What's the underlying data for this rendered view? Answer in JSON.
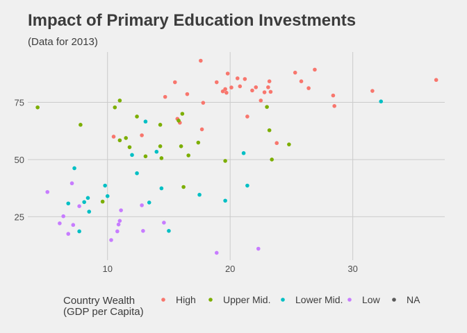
{
  "chart_data": {
    "type": "scatter",
    "title": "Impact of Primary Education Investments",
    "subtitle": "(Data for 2013)",
    "xlabel": "",
    "ylabel": "",
    "xlim": [
      3.5,
      37.5
    ],
    "ylim": [
      6,
      97
    ],
    "x_ticks": [
      10,
      20,
      30
    ],
    "y_ticks": [
      25,
      50,
      75
    ],
    "grid": true,
    "legend_position": "bottom",
    "legend_title": [
      "Country Wealth",
      "(GDP per Capita)"
    ],
    "series": [
      {
        "name": "High",
        "color": "#f8766d",
        "points": [
          [
            17.6,
            93.2
          ],
          [
            15.5,
            83.8
          ],
          [
            14.7,
            77.4
          ],
          [
            16.5,
            78.6
          ],
          [
            17.8,
            74.8
          ],
          [
            15.7,
            67.8
          ],
          [
            15.9,
            66.1
          ],
          [
            17.7,
            63.2
          ],
          [
            10.5,
            60
          ],
          [
            12.8,
            60.6
          ],
          [
            18.9,
            83.8
          ],
          [
            19.4,
            79.8
          ],
          [
            19.6,
            80.8
          ],
          [
            19.7,
            79.2
          ],
          [
            19.8,
            87.6
          ],
          [
            20.1,
            81.5
          ],
          [
            20.6,
            85.5
          ],
          [
            20.8,
            82
          ],
          [
            21.2,
            85.2
          ],
          [
            21.8,
            80.2
          ],
          [
            22.1,
            81.6
          ],
          [
            22.5,
            75.8
          ],
          [
            22.8,
            79.4
          ],
          [
            23.1,
            81.6
          ],
          [
            23.2,
            84.2
          ],
          [
            23.3,
            79.6
          ],
          [
            21.4,
            68.8
          ],
          [
            23.8,
            57.2
          ],
          [
            25.3,
            88
          ],
          [
            25.8,
            84.2
          ],
          [
            26.4,
            81.2
          ],
          [
            26.9,
            89.3
          ],
          [
            28.4,
            78
          ],
          [
            28.5,
            73.4
          ],
          [
            31.6,
            80
          ],
          [
            36.8,
            84.8
          ]
        ]
      },
      {
        "name": "Upper Mid.",
        "color": "#7cae00",
        "points": [
          [
            4.3,
            72.8
          ],
          [
            7.8,
            65.2
          ],
          [
            10.6,
            72.8
          ],
          [
            11.0,
            75.8
          ],
          [
            11.0,
            58.4
          ],
          [
            11.5,
            59.4
          ],
          [
            11.8,
            55.4
          ],
          [
            12.4,
            68.8
          ],
          [
            13.1,
            51.4
          ],
          [
            14.3,
            65.2
          ],
          [
            14.3,
            55.8
          ],
          [
            14.4,
            50.6
          ],
          [
            15.8,
            67
          ],
          [
            16.1,
            70
          ],
          [
            16.0,
            55.8
          ],
          [
            16.2,
            38
          ],
          [
            16.6,
            51.8
          ],
          [
            17.4,
            57.4
          ],
          [
            19.6,
            49.4
          ],
          [
            23.0,
            73
          ],
          [
            23.2,
            62.8
          ],
          [
            23.4,
            50
          ],
          [
            24.8,
            56.6
          ],
          [
            9.6,
            31.6
          ]
        ]
      },
      {
        "name": "Lower Mid.",
        "color": "#00bfc4",
        "points": [
          [
            7.3,
            46.2
          ],
          [
            6.8,
            30.8
          ],
          [
            8.1,
            31.4
          ],
          [
            8.4,
            33.2
          ],
          [
            8.5,
            27.2
          ],
          [
            9.8,
            38.6
          ],
          [
            10.0,
            34
          ],
          [
            7.7,
            18.6
          ],
          [
            12.0,
            52
          ],
          [
            12.4,
            44
          ],
          [
            13.1,
            66.6
          ],
          [
            13.4,
            31.2
          ],
          [
            14.0,
            53.4
          ],
          [
            14.4,
            37.4
          ],
          [
            15.0,
            18.8
          ],
          [
            17.5,
            34.6
          ],
          [
            19.6,
            32
          ],
          [
            21.1,
            52.8
          ],
          [
            21.4,
            38.6
          ],
          [
            32.3,
            75.4
          ]
        ]
      },
      {
        "name": "Low",
        "color": "#c77cff",
        "points": [
          [
            5.1,
            35.8
          ],
          [
            6.1,
            22.1
          ],
          [
            6.4,
            25.2
          ],
          [
            6.8,
            17.5
          ],
          [
            7.1,
            39.6
          ],
          [
            7.2,
            21.4
          ],
          [
            7.7,
            29.6
          ],
          [
            10.3,
            14.8
          ],
          [
            10.8,
            18.6
          ],
          [
            10.9,
            21.6
          ],
          [
            11.0,
            23.2
          ],
          [
            11.1,
            27.8
          ],
          [
            12.8,
            30
          ],
          [
            12.9,
            18.8
          ],
          [
            14.6,
            22.4
          ],
          [
            18.9,
            9.2
          ],
          [
            22.3,
            11
          ]
        ]
      },
      {
        "name": "NA",
        "color": "#595959",
        "points": []
      }
    ]
  }
}
